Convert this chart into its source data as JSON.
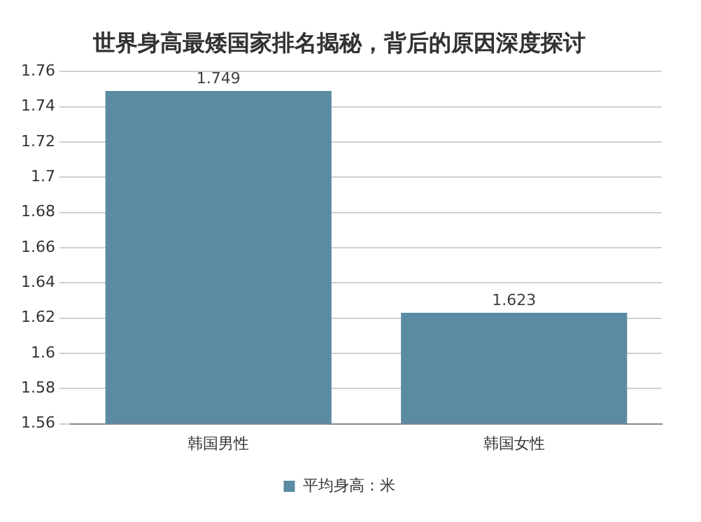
{
  "chart_data": {
    "type": "bar",
    "title": "世界身高最矮国家排名揭秘，背后的原因深度探讨",
    "categories": [
      "韩国男性",
      "韩国女性"
    ],
    "series": [
      {
        "name": "平均身高：米",
        "color": "#5b8aa3",
        "values": [
          1.749,
          1.623
        ]
      }
    ],
    "ylim": [
      1.56,
      1.76
    ],
    "yticks": [
      1.56,
      1.58,
      1.6,
      1.62,
      1.64,
      1.66,
      1.68,
      1.7,
      1.72,
      1.74,
      1.76
    ],
    "grid": "y",
    "legend": "bottom",
    "data_labels": true
  }
}
